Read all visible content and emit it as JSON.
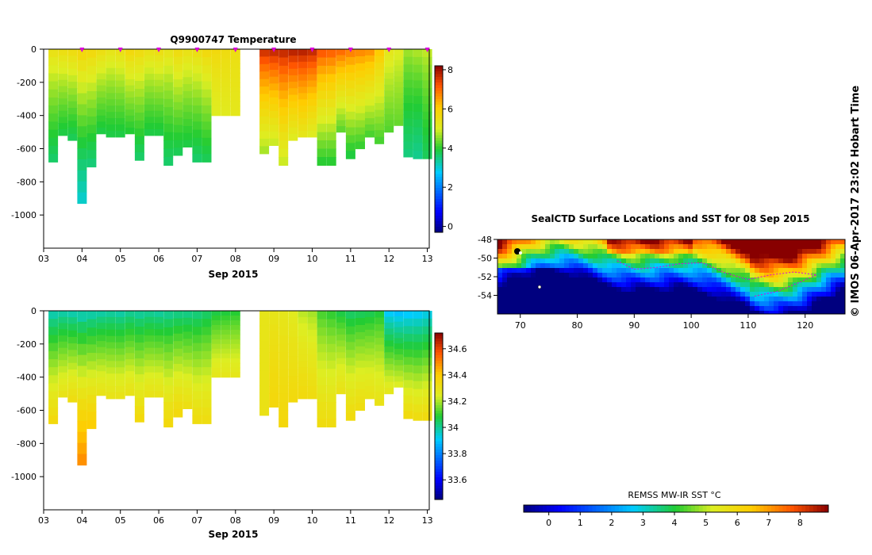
{
  "charts": {
    "top": {
      "title": "Q9900747  Temperature",
      "xlabel": "Sep 2015",
      "colorbar_ticks": [
        "8",
        "6",
        "4",
        "2",
        "0"
      ]
    },
    "bottom": {
      "title": "",
      "xlabel": "Sep 2015",
      "colorbar_ticks": [
        "34.6",
        "34.4",
        "34.2",
        "34",
        "33.8",
        "33.6"
      ]
    },
    "map": {
      "title": "SealCTD Surface Locations and SST for 08 Sep 2015",
      "colorbar_label": "REMSS MW-IR SST °C",
      "colorbar_ticks": [
        "0",
        "1",
        "2",
        "3",
        "4",
        "5",
        "6",
        "7",
        "8"
      ]
    }
  },
  "credit": "© IMOS 06-Apr-2017 23:02 Hobart Time",
  "chart_data": [
    {
      "type": "heatmap",
      "title": "Q9900747  Temperature",
      "xlabel": "Sep 2015",
      "ylabel": "",
      "x_ticks": [
        "03",
        "04",
        "05",
        "06",
        "07",
        "08",
        "09",
        "10",
        "11",
        "12",
        "13"
      ],
      "y_ticks": [
        "0",
        "-200",
        "-400",
        "-600",
        "-800",
        "-1000"
      ],
      "xlim": [
        3,
        13.05
      ],
      "ylim": [
        -1200,
        0
      ],
      "colorbar": {
        "range": [
          -0.3,
          8.2
        ],
        "ticks": [
          "0",
          "2",
          "4",
          "6",
          "8"
        ]
      },
      "profiles": [
        {
          "day": 3.25,
          "max_depth": 680,
          "t_surface": 5.5,
          "t_deep": 3.6
        },
        {
          "day": 3.5,
          "max_depth": 520,
          "t_surface": 5.6,
          "t_deep": 3.8
        },
        {
          "day": 3.75,
          "max_depth": 550,
          "t_surface": 5.7,
          "t_deep": 3.7
        },
        {
          "day": 4.0,
          "max_depth": 930,
          "t_surface": 5.9,
          "t_deep": 3.0
        },
        {
          "day": 4.25,
          "max_depth": 710,
          "t_surface": 5.8,
          "t_deep": 3.5
        },
        {
          "day": 4.5,
          "max_depth": 510,
          "t_surface": 5.6,
          "t_deep": 3.8
        },
        {
          "day": 4.75,
          "max_depth": 530,
          "t_surface": 5.4,
          "t_deep": 3.8
        },
        {
          "day": 5.0,
          "max_depth": 530,
          "t_surface": 5.5,
          "t_deep": 3.8
        },
        {
          "day": 5.25,
          "max_depth": 510,
          "t_surface": 5.8,
          "t_deep": 3.9
        },
        {
          "day": 5.5,
          "max_depth": 670,
          "t_surface": 5.7,
          "t_deep": 3.6
        },
        {
          "day": 5.75,
          "max_depth": 520,
          "t_surface": 5.5,
          "t_deep": 3.8
        },
        {
          "day": 6.0,
          "max_depth": 520,
          "t_surface": 5.6,
          "t_deep": 3.8
        },
        {
          "day": 6.25,
          "max_depth": 700,
          "t_surface": 5.4,
          "t_deep": 3.6
        },
        {
          "day": 6.5,
          "max_depth": 640,
          "t_surface": 5.7,
          "t_deep": 3.7
        },
        {
          "day": 6.75,
          "max_depth": 590,
          "t_surface": 5.5,
          "t_deep": 3.8
        },
        {
          "day": 7.0,
          "max_depth": 680,
          "t_surface": 5.6,
          "t_deep": 3.6
        },
        {
          "day": 7.25,
          "max_depth": 680,
          "t_surface": 5.8,
          "t_deep": 3.7
        },
        {
          "day": 7.5,
          "max_depth": 400,
          "t_surface": 5.7,
          "t_deep": 5.0
        },
        {
          "day": 7.75,
          "max_depth": 400,
          "t_surface": 5.6,
          "t_deep": 5.1
        },
        {
          "day": 8.0,
          "max_depth": 400,
          "t_surface": 5.5,
          "t_deep": 5.2
        },
        {
          "day": 8.75,
          "max_depth": 630,
          "t_surface": 7.8,
          "t_deep": 4.6
        },
        {
          "day": 9.0,
          "max_depth": 580,
          "t_surface": 7.9,
          "t_deep": 4.8
        },
        {
          "day": 9.25,
          "max_depth": 700,
          "t_surface": 7.9,
          "t_deep": 4.8
        },
        {
          "day": 9.5,
          "max_depth": 550,
          "t_surface": 8.0,
          "t_deep": 5.0
        },
        {
          "day": 9.75,
          "max_depth": 530,
          "t_surface": 8.0,
          "t_deep": 5.2
        },
        {
          "day": 10.0,
          "max_depth": 530,
          "t_surface": 7.9,
          "t_deep": 5.0
        },
        {
          "day": 10.25,
          "max_depth": 700,
          "t_surface": 7.4,
          "t_deep": 3.9
        },
        {
          "day": 10.5,
          "max_depth": 700,
          "t_surface": 7.3,
          "t_deep": 3.9
        },
        {
          "day": 10.75,
          "max_depth": 500,
          "t_surface": 7.2,
          "t_deep": 4.2
        },
        {
          "day": 11.0,
          "max_depth": 660,
          "t_surface": 7.0,
          "t_deep": 3.8
        },
        {
          "day": 11.25,
          "max_depth": 600,
          "t_surface": 6.9,
          "t_deep": 4.0
        },
        {
          "day": 11.5,
          "max_depth": 530,
          "t_surface": 6.8,
          "t_deep": 4.1
        },
        {
          "day": 11.75,
          "max_depth": 570,
          "t_surface": 6.2,
          "t_deep": 4.1
        },
        {
          "day": 12.0,
          "max_depth": 500,
          "t_surface": 5.3,
          "t_deep": 4.2
        },
        {
          "day": 12.25,
          "max_depth": 460,
          "t_surface": 5.1,
          "t_deep": 4.3
        },
        {
          "day": 12.5,
          "max_depth": 650,
          "t_surface": 4.7,
          "t_deep": 3.5
        },
        {
          "day": 12.75,
          "max_depth": 660,
          "t_surface": 4.8,
          "t_deep": 3.4
        },
        {
          "day": 13.0,
          "max_depth": 660,
          "t_surface": 4.9,
          "t_deep": 3.7
        }
      ]
    },
    {
      "type": "heatmap",
      "title": "",
      "xlabel": "Sep 2015",
      "ylabel": "",
      "x_ticks": [
        "03",
        "04",
        "05",
        "06",
        "07",
        "08",
        "09",
        "10",
        "11",
        "12",
        "13"
      ],
      "y_ticks": [
        "0",
        "-200",
        "-400",
        "-600",
        "-800",
        "-1000"
      ],
      "xlim": [
        3,
        13.05
      ],
      "ylim": [
        -1200,
        0
      ],
      "colorbar": {
        "range": [
          33.45,
          34.72
        ],
        "ticks": [
          "33.6",
          "33.8",
          "34",
          "34.2",
          "34.4",
          "34.6"
        ]
      },
      "profiles": [
        {
          "day": 3.25,
          "max_depth": 680,
          "s_surface": 33.95,
          "s_deep": 34.35
        },
        {
          "day": 3.5,
          "max_depth": 520,
          "s_surface": 33.96,
          "s_deep": 34.3
        },
        {
          "day": 3.75,
          "max_depth": 550,
          "s_surface": 33.95,
          "s_deep": 34.33
        },
        {
          "day": 4.0,
          "max_depth": 930,
          "s_surface": 33.94,
          "s_deep": 34.5
        },
        {
          "day": 4.25,
          "max_depth": 710,
          "s_surface": 33.95,
          "s_deep": 34.4
        },
        {
          "day": 4.5,
          "max_depth": 510,
          "s_surface": 33.96,
          "s_deep": 34.3
        },
        {
          "day": 4.75,
          "max_depth": 530,
          "s_surface": 33.97,
          "s_deep": 34.3
        },
        {
          "day": 5.0,
          "max_depth": 530,
          "s_surface": 33.96,
          "s_deep": 34.3
        },
        {
          "day": 5.25,
          "max_depth": 510,
          "s_surface": 33.98,
          "s_deep": 34.3
        },
        {
          "day": 5.5,
          "max_depth": 670,
          "s_surface": 33.97,
          "s_deep": 34.35
        },
        {
          "day": 5.75,
          "max_depth": 520,
          "s_surface": 33.98,
          "s_deep": 34.3
        },
        {
          "day": 6.0,
          "max_depth": 520,
          "s_surface": 33.97,
          "s_deep": 34.3
        },
        {
          "day": 6.25,
          "max_depth": 700,
          "s_surface": 33.98,
          "s_deep": 34.35
        },
        {
          "day": 6.5,
          "max_depth": 640,
          "s_surface": 33.99,
          "s_deep": 34.35
        },
        {
          "day": 6.75,
          "max_depth": 590,
          "s_surface": 33.99,
          "s_deep": 34.32
        },
        {
          "day": 7.0,
          "max_depth": 680,
          "s_surface": 34.0,
          "s_deep": 34.33
        },
        {
          "day": 7.25,
          "max_depth": 680,
          "s_surface": 34.02,
          "s_deep": 34.33
        },
        {
          "day": 7.5,
          "max_depth": 400,
          "s_surface": 34.05,
          "s_deep": 34.28
        },
        {
          "day": 7.75,
          "max_depth": 400,
          "s_surface": 34.06,
          "s_deep": 34.28
        },
        {
          "day": 8.0,
          "max_depth": 400,
          "s_surface": 34.07,
          "s_deep": 34.28
        },
        {
          "day": 8.75,
          "max_depth": 630,
          "s_surface": 34.28,
          "s_deep": 34.3
        },
        {
          "day": 9.0,
          "max_depth": 580,
          "s_surface": 34.28,
          "s_deep": 34.35
        },
        {
          "day": 9.25,
          "max_depth": 700,
          "s_surface": 34.27,
          "s_deep": 34.35
        },
        {
          "day": 9.5,
          "max_depth": 550,
          "s_surface": 34.25,
          "s_deep": 34.34
        },
        {
          "day": 9.75,
          "max_depth": 530,
          "s_surface": 34.2,
          "s_deep": 34.34
        },
        {
          "day": 10.0,
          "max_depth": 530,
          "s_surface": 34.18,
          "s_deep": 34.33
        },
        {
          "day": 10.25,
          "max_depth": 700,
          "s_surface": 34.1,
          "s_deep": 34.33
        },
        {
          "day": 10.5,
          "max_depth": 700,
          "s_surface": 34.08,
          "s_deep": 34.33
        },
        {
          "day": 10.75,
          "max_depth": 500,
          "s_surface": 34.05,
          "s_deep": 34.3
        },
        {
          "day": 11.0,
          "max_depth": 660,
          "s_surface": 34.02,
          "s_deep": 34.34
        },
        {
          "day": 11.25,
          "max_depth": 600,
          "s_surface": 34.03,
          "s_deep": 34.33
        },
        {
          "day": 11.5,
          "max_depth": 530,
          "s_surface": 34.04,
          "s_deep": 34.3
        },
        {
          "day": 11.75,
          "max_depth": 570,
          "s_surface": 34.06,
          "s_deep": 34.3
        },
        {
          "day": 12.0,
          "max_depth": 500,
          "s_surface": 33.88,
          "s_deep": 34.28
        },
        {
          "day": 12.25,
          "max_depth": 460,
          "s_surface": 33.86,
          "s_deep": 34.25
        },
        {
          "day": 12.5,
          "max_depth": 650,
          "s_surface": 33.87,
          "s_deep": 34.34
        },
        {
          "day": 12.75,
          "max_depth": 660,
          "s_surface": 33.88,
          "s_deep": 34.33
        },
        {
          "day": 13.0,
          "max_depth": 660,
          "s_surface": 33.9,
          "s_deep": 34.34
        }
      ]
    },
    {
      "type": "heatmap",
      "title": "SealCTD Surface Locations and SST for 08 Sep 2015",
      "x_ticks": [
        "70",
        "80",
        "90",
        "100",
        "110",
        "120"
      ],
      "y_ticks": [
        "-48",
        "-50",
        "-52",
        "-54"
      ],
      "xlim": [
        66,
        127
      ],
      "ylim": [
        -56,
        -48
      ],
      "colorbar": {
        "label": "REMSS MW-IR SST °C",
        "range": [
          -0.8,
          8.9
        ],
        "ticks": [
          "0",
          "1",
          "2",
          "3",
          "4",
          "5",
          "6",
          "7",
          "8"
        ]
      },
      "track": [
        [
          87,
          -50.3
        ],
        [
          90,
          -51.2
        ],
        [
          94,
          -51.0
        ],
        [
          98,
          -50.6
        ],
        [
          102,
          -50.5
        ],
        [
          106,
          -51.6
        ],
        [
          110,
          -52.3
        ],
        [
          114,
          -51.8
        ],
        [
          118,
          -51.5
        ],
        [
          122,
          -51.8
        ],
        [
          119,
          -52.6
        ],
        [
          115,
          -53.6
        ],
        [
          111,
          -54.1
        ]
      ],
      "track_color": "#dd00dd"
    }
  ]
}
